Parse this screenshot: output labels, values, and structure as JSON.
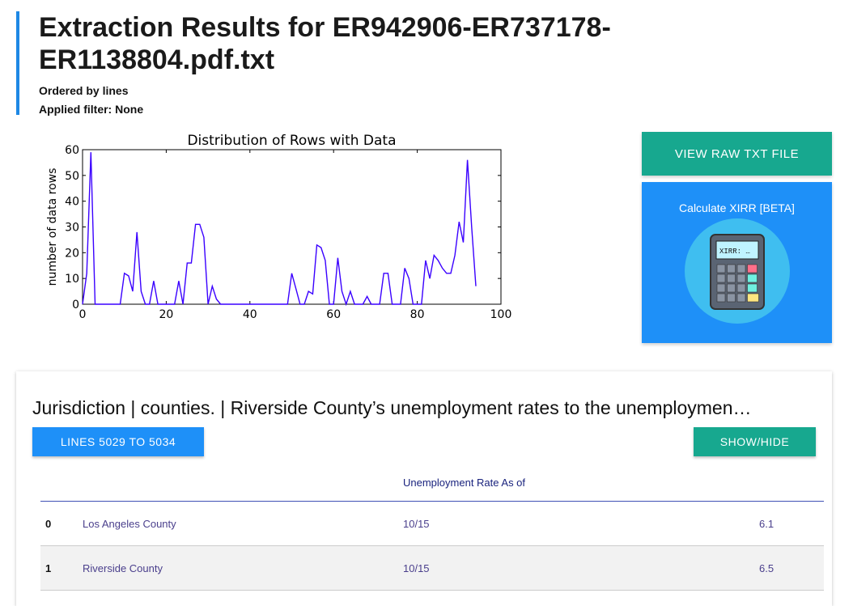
{
  "header": {
    "title": "Extraction Results for ER942906-ER737178-ER1138804.pdf.txt",
    "ordered_by": "Ordered by lines",
    "filter": "Applied filter: None"
  },
  "buttons": {
    "view_raw": "VIEW RAW TXT FILE",
    "xirr": "Calculate XIRR [BETA]",
    "calc_screen": "XIRR: …"
  },
  "chart_data": {
    "type": "line",
    "title": "Distribution of Rows with Data",
    "xlabel": "",
    "ylabel": "number of data rows",
    "xlim": [
      0,
      100
    ],
    "ylim": [
      0,
      60
    ],
    "xticks": [
      0,
      20,
      40,
      60,
      80,
      100
    ],
    "yticks": [
      0,
      10,
      20,
      30,
      40,
      50,
      60
    ],
    "line_color": "#3a00ff",
    "x": [
      0,
      1,
      2,
      3,
      4,
      5,
      6,
      7,
      8,
      9,
      10,
      11,
      12,
      13,
      14,
      15,
      16,
      17,
      18,
      19,
      20,
      21,
      22,
      23,
      24,
      25,
      26,
      27,
      28,
      29,
      30,
      31,
      32,
      33,
      34,
      35,
      36,
      37,
      38,
      39,
      40,
      41,
      42,
      43,
      44,
      45,
      46,
      47,
      48,
      49,
      50,
      51,
      52,
      53,
      54,
      55,
      56,
      57,
      58,
      59,
      60,
      61,
      62,
      63,
      64,
      65,
      66,
      67,
      68,
      69,
      70,
      71,
      72,
      73,
      74,
      75,
      76,
      77,
      78,
      79,
      80,
      81,
      82,
      83,
      84,
      85,
      86,
      87,
      88,
      89,
      90,
      91,
      92,
      93,
      94
    ],
    "y": [
      0,
      12,
      59,
      0,
      0,
      0,
      0,
      0,
      0,
      0,
      12,
      11,
      5,
      28,
      5,
      0,
      0,
      9,
      0,
      0,
      0,
      0,
      0,
      9,
      0,
      16,
      16,
      31,
      31,
      26,
      0,
      7,
      2,
      0,
      0,
      0,
      0,
      0,
      0,
      0,
      0,
      0,
      0,
      0,
      0,
      0,
      0,
      0,
      0,
      0,
      12,
      6,
      0,
      0,
      5,
      4,
      23,
      22,
      17,
      0,
      0,
      18,
      5,
      0,
      5,
      0,
      0,
      0,
      3,
      0,
      0,
      0,
      12,
      12,
      0,
      0,
      0,
      14,
      10,
      0,
      0,
      0,
      17,
      10,
      19,
      17,
      14,
      12,
      12,
      19,
      32,
      24,
      56,
      30,
      7
    ]
  },
  "section": {
    "title": "Jurisdiction | counties. | Riverside County’s unemployment rates to the unemploymen…",
    "lines_button": "LINES 5029 TO 5034",
    "show_hide_button": "SHOW/HIDE"
  },
  "table": {
    "header": "Unemployment Rate As of",
    "rows": [
      {
        "index": "0",
        "name": "Los Angeles County",
        "date": "10/15",
        "rate": "6.1"
      },
      {
        "index": "1",
        "name": "Riverside County",
        "date": "10/15",
        "rate": "6.5"
      }
    ]
  }
}
